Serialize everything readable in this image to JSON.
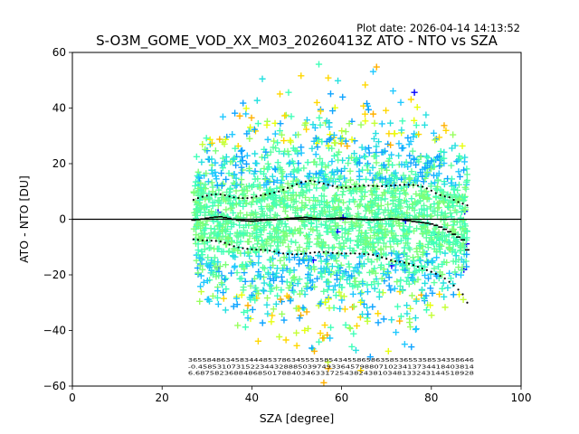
{
  "chart_data": {
    "type": "scatter",
    "title": "S-O3M_GOME_VOD_XX_M03_20260413Z ATO - NTO vs SZA",
    "plot_date": "Plot date: 2026-04-14 14:13:52",
    "xlabel": "SZA [degree]",
    "ylabel": "ATO - NTO [DU]",
    "xlim": [
      0,
      100
    ],
    "ylim": [
      -60,
      60
    ],
    "x_ticks": [
      "0",
      "20",
      "40",
      "60",
      "80",
      "100"
    ],
    "y_ticks": [
      "60",
      "40",
      "20",
      "0",
      "−20",
      "−40",
      "−60"
    ],
    "x_tick_values": [
      0,
      20,
      40,
      60,
      80,
      100
    ],
    "y_tick_values": [
      60,
      40,
      20,
      0,
      -20,
      -40,
      -60
    ],
    "zero_line": 0,
    "scatter_x_range": [
      27,
      88
    ],
    "point_marker": "+",
    "point_colors": [
      "#7cff79",
      "#5bffa0",
      "#40ffb8",
      "#26e0e0",
      "#1fc8ff",
      "#0fa4ff",
      "#c4ff36",
      "#e8ff0e",
      "#ffd700",
      "#ffb000",
      "#98ff5e",
      "#0000ff"
    ],
    "binned_x": [
      27,
      28,
      29,
      30,
      31,
      32,
      33,
      34,
      35,
      36,
      37,
      38,
      39,
      40,
      41,
      42,
      43,
      44,
      45,
      46,
      47,
      48,
      49,
      50,
      51,
      52,
      53,
      54,
      55,
      56,
      57,
      58,
      59,
      60,
      61,
      62,
      63,
      64,
      65,
      66,
      67,
      68,
      69,
      70,
      71,
      72,
      73,
      74,
      75,
      76,
      77,
      78,
      79,
      80,
      81,
      82,
      83,
      84,
      85,
      86,
      87,
      88
    ],
    "binned_mean": [
      -0.3,
      -0.1,
      0.1,
      0.4,
      0.6,
      0.8,
      0.9,
      0.6,
      0.3,
      0.0,
      -0.3,
      -0.5,
      -0.6,
      -0.7,
      -0.6,
      -0.4,
      -0.3,
      -0.2,
      -0.2,
      0.0,
      0.1,
      0.2,
      0.4,
      0.5,
      0.6,
      0.7,
      0.5,
      0.3,
      0.2,
      0.1,
      0.2,
      0.3,
      0.4,
      0.4,
      0.3,
      0.2,
      0.1,
      0.0,
      -0.1,
      -0.2,
      -0.3,
      -0.2,
      -0.1,
      0.1,
      0.2,
      0.1,
      -0.1,
      -0.3,
      -0.5,
      -0.8,
      -1.0,
      -1.2,
      -1.4,
      -1.7,
      -2.2,
      -2.8,
      -3.6,
      -4.5,
      -5.4,
      -6.4,
      -7.4,
      -11.0
    ],
    "binned_upper": [
      7.0,
      7.6,
      8.1,
      8.5,
      8.8,
      9.0,
      9.0,
      8.6,
      8.2,
      7.9,
      7.7,
      7.6,
      7.6,
      7.8,
      8.2,
      8.6,
      8.9,
      9.2,
      9.6,
      10.0,
      10.6,
      11.3,
      12.0,
      12.6,
      13.2,
      13.6,
      13.8,
      13.6,
      13.2,
      12.8,
      12.4,
      12.0,
      11.7,
      11.4,
      11.4,
      11.6,
      11.8,
      12.0,
      12.1,
      12.1,
      12.0,
      11.9,
      11.9,
      12.0,
      12.1,
      12.2,
      12.3,
      12.4,
      12.4,
      12.3,
      12.1,
      11.7,
      11.1,
      10.3,
      9.4,
      8.7,
      8.2,
      7.9,
      7.0,
      6.2,
      5.6,
      5.0
    ],
    "binned_lower": [
      -7.2,
      -7.4,
      -7.6,
      -7.6,
      -7.7,
      -7.8,
      -8.0,
      -8.5,
      -9.1,
      -9.7,
      -10.1,
      -10.4,
      -10.6,
      -10.8,
      -10.9,
      -11.0,
      -11.1,
      -11.3,
      -11.6,
      -12.0,
      -12.3,
      -12.5,
      -12.6,
      -12.6,
      -12.5,
      -12.3,
      -12.1,
      -11.9,
      -11.8,
      -11.8,
      -11.9,
      -12.1,
      -12.2,
      -12.3,
      -12.3,
      -12.3,
      -12.3,
      -12.4,
      -12.5,
      -12.6,
      -12.8,
      -13.2,
      -13.7,
      -14.2,
      -14.7,
      -15.1,
      -15.3,
      -15.6,
      -16.0,
      -16.5,
      -17.1,
      -17.7,
      -18.3,
      -18.9,
      -19.6,
      -20.4,
      -21.3,
      -22.5,
      -23.8,
      -25.3,
      -27.0,
      -30.0
    ],
    "bin_annotations": {
      "row1": "3655848634583444853786345553585434558658635853655358534358646",
      "row2": "-0.4585310731522344328885039749336457988071023413734418403814",
      "row3": "6.6875823688486850178840346331725438243810348133243144518928"
    }
  }
}
